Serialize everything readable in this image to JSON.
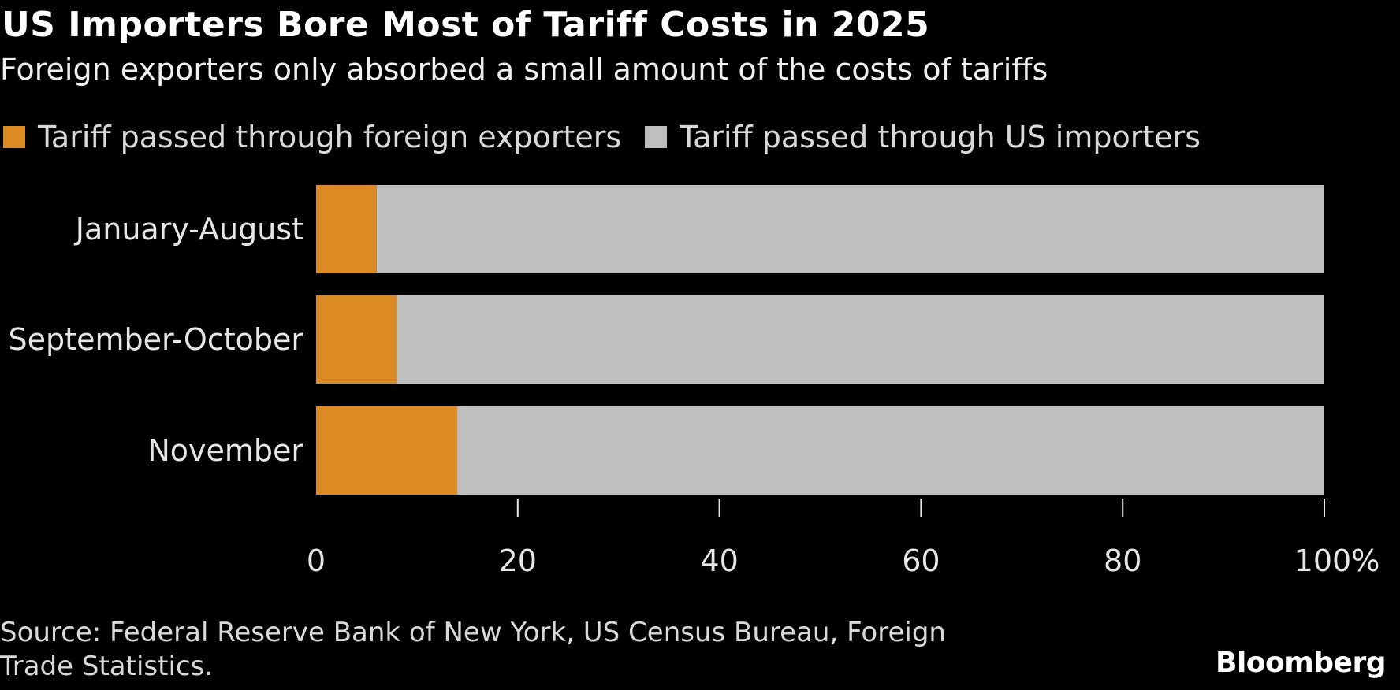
{
  "header": {
    "title": "US Importers Bore Most of Tariff Costs in 2025",
    "subtitle": "Foreign exporters only absorbed a small amount of the costs of tariffs"
  },
  "legend": [
    {
      "label": "Tariff passed through foreign exporters",
      "color": "#db8a24"
    },
    {
      "label": "Tariff passed through US importers",
      "color": "#bfbfbf"
    }
  ],
  "footer": {
    "source_line1": "Source: Federal Reserve Bank of New York, US Census Bureau, Foreign",
    "source_line2": "Trade Statistics.",
    "brand": "Bloomberg"
  },
  "chart_data": {
    "type": "bar",
    "orientation": "horizontal",
    "stacked": true,
    "title": "US Importers Bore Most of Tariff Costs in 2025",
    "subtitle": "Foreign exporters only absorbed a small amount of the costs of tariffs",
    "categories": [
      "January-August",
      "September-October",
      "November"
    ],
    "series": [
      {
        "name": "Tariff passed through foreign exporters",
        "color": "#db8a24",
        "values": [
          6,
          8,
          14
        ]
      },
      {
        "name": "Tariff passed through US importers",
        "color": "#bfbfbf",
        "values": [
          94,
          92,
          86
        ]
      }
    ],
    "xlim": [
      0,
      100
    ],
    "xticks": [
      0,
      20,
      40,
      60,
      80,
      100
    ],
    "xtick_labels": [
      "0",
      "20",
      "40",
      "60",
      "80",
      "100%"
    ],
    "xlabel": "",
    "ylabel": "",
    "grid": false,
    "legend_position": "top-left"
  }
}
